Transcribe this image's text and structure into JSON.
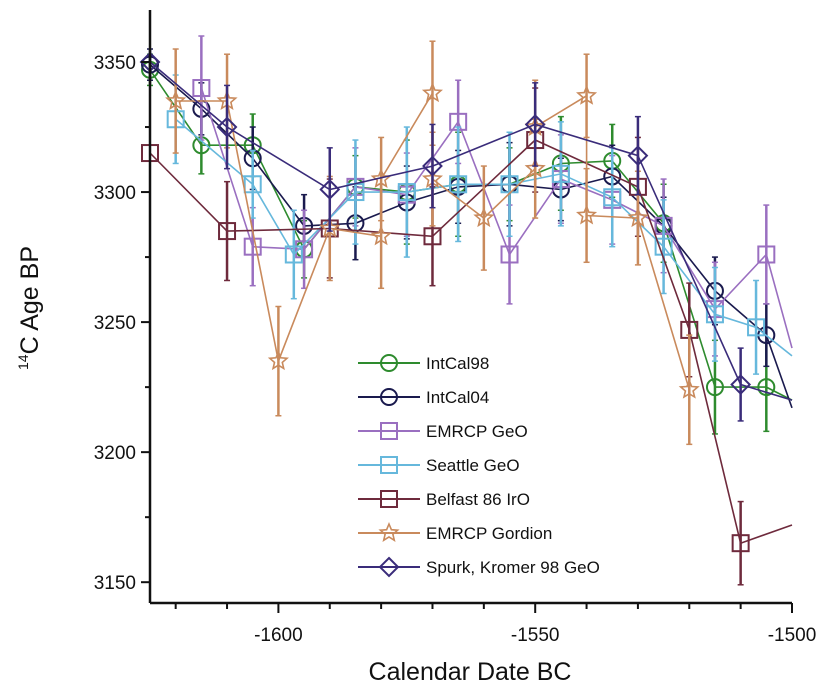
{
  "chart_data": {
    "type": "line",
    "title": "",
    "xlabel": "Calendar Date BC",
    "ylabel_main": "C Age BP",
    "ylabel_superscript": "14",
    "xlim": [
      -1625,
      -1500
    ],
    "ylim": [
      3142,
      3370
    ],
    "x_ticks": [
      -1600,
      -1550,
      -1500
    ],
    "y_ticks": [
      3150,
      3200,
      3250,
      3300,
      3350
    ],
    "grid": false,
    "legend_position": "bottom-center",
    "series": [
      {
        "name": "IntCal98",
        "color": "#2e8b2e",
        "marker": "circle",
        "points": [
          {
            "x": -1625,
            "y": 3347,
            "err": 6
          },
          {
            "x": -1615,
            "y": 3318,
            "err": 11
          },
          {
            "x": -1605,
            "y": 3318,
            "err": 12
          },
          {
            "x": -1595,
            "y": 3278,
            "err": 11
          },
          {
            "x": -1585,
            "y": 3302,
            "err": 12
          },
          {
            "x": -1575,
            "y": 3300,
            "err": 20
          },
          {
            "x": -1565,
            "y": 3303,
            "err": 20
          },
          {
            "x": -1555,
            "y": 3303,
            "err": 14
          },
          {
            "x": -1545,
            "y": 3311,
            "err": 18
          },
          {
            "x": -1535,
            "y": 3312,
            "err": 14
          },
          {
            "x": -1525,
            "y": 3288,
            "err": 15
          },
          {
            "x": -1515,
            "y": 3225,
            "err": 18
          },
          {
            "x": -1505,
            "y": 3225,
            "err": 17
          },
          {
            "x": -1500,
            "y": 3220,
            "err": 0
          }
        ]
      },
      {
        "name": "IntCal04",
        "color": "#1a1a4e",
        "marker": "circle",
        "points": [
          {
            "x": -1625,
            "y": 3349,
            "err": 6
          },
          {
            "x": -1615,
            "y": 3332,
            "err": 10
          },
          {
            "x": -1605,
            "y": 3313,
            "err": 12
          },
          {
            "x": -1595,
            "y": 3287,
            "err": 12
          },
          {
            "x": -1585,
            "y": 3288,
            "err": 14
          },
          {
            "x": -1575,
            "y": 3296,
            "err": 14
          },
          {
            "x": -1565,
            "y": 3302,
            "err": 14
          },
          {
            "x": -1555,
            "y": 3303,
            "err": 16
          },
          {
            "x": -1545,
            "y": 3301,
            "err": 12
          },
          {
            "x": -1535,
            "y": 3306,
            "err": 12
          },
          {
            "x": -1525,
            "y": 3287,
            "err": 11
          },
          {
            "x": -1515,
            "y": 3262,
            "err": 13
          },
          {
            "x": -1505,
            "y": 3245,
            "err": 12
          },
          {
            "x": -1500,
            "y": 3217,
            "err": 0
          }
        ]
      },
      {
        "name": "EMRCP GeO",
        "color": "#9a6fc0",
        "marker": "square",
        "points": [
          {
            "x": -1615,
            "y": 3340,
            "err": 20
          },
          {
            "x": -1605,
            "y": 3279,
            "err": 15
          },
          {
            "x": -1595,
            "y": 3278,
            "err": 15
          },
          {
            "x": -1585,
            "y": 3302,
            "err": 15
          },
          {
            "x": -1575,
            "y": 3299,
            "err": 16
          },
          {
            "x": -1565,
            "y": 3327,
            "err": 16
          },
          {
            "x": -1555,
            "y": 3276,
            "err": 19
          },
          {
            "x": -1545,
            "y": 3305,
            "err": 17
          },
          {
            "x": -1535,
            "y": 3297,
            "err": 17
          },
          {
            "x": -1525,
            "y": 3287,
            "err": 18
          },
          {
            "x": -1515,
            "y": 3255,
            "err": 18
          },
          {
            "x": -1505,
            "y": 3276,
            "err": 19
          },
          {
            "x": -1500,
            "y": 3240,
            "err": 0
          }
        ]
      },
      {
        "name": "Seattle GeO",
        "color": "#66b8dc",
        "marker": "square",
        "points": [
          {
            "x": -1620,
            "y": 3328,
            "err": 17
          },
          {
            "x": -1605,
            "y": 3303,
            "err": 13
          },
          {
            "x": -1597,
            "y": 3276,
            "err": 17
          },
          {
            "x": -1585,
            "y": 3300,
            "err": 20
          },
          {
            "x": -1575,
            "y": 3300,
            "err": 25
          },
          {
            "x": -1565,
            "y": 3303,
            "err": 22
          },
          {
            "x": -1555,
            "y": 3303,
            "err": 20
          },
          {
            "x": -1545,
            "y": 3307,
            "err": 20
          },
          {
            "x": -1535,
            "y": 3298,
            "err": 19
          },
          {
            "x": -1525,
            "y": 3279,
            "err": 18
          },
          {
            "x": -1515,
            "y": 3253,
            "err": 18
          },
          {
            "x": -1507,
            "y": 3248,
            "err": 18
          },
          {
            "x": -1500,
            "y": 3237,
            "err": 0
          }
        ]
      },
      {
        "name": "Belfast 86 IrO",
        "color": "#6e2a3c",
        "marker": "square",
        "points": [
          {
            "x": -1625,
            "y": 3315,
            "err": 0
          },
          {
            "x": -1610,
            "y": 3285,
            "err": 19
          },
          {
            "x": -1590,
            "y": 3286,
            "err": 19
          },
          {
            "x": -1570,
            "y": 3283,
            "err": 19
          },
          {
            "x": -1550,
            "y": 3320,
            "err": 20
          },
          {
            "x": -1530,
            "y": 3302,
            "err": 19
          },
          {
            "x": -1520,
            "y": 3247,
            "err": 18
          },
          {
            "x": -1510,
            "y": 3165,
            "err": 16
          },
          {
            "x": -1500,
            "y": 3172,
            "err": 0
          }
        ]
      },
      {
        "name": "EMRCP Gordion",
        "color": "#c98a5c",
        "marker": "star",
        "points": [
          {
            "x": -1620,
            "y": 3335,
            "err": 20
          },
          {
            "x": -1610,
            "y": 3335,
            "err": 18
          },
          {
            "x": -1600,
            "y": 3235,
            "err": 21
          },
          {
            "x": -1590,
            "y": 3286,
            "err": 20
          },
          {
            "x": -1580,
            "y": 3283,
            "err": 20
          },
          {
            "x": -1580,
            "y": 3305,
            "err": 16
          },
          {
            "x": -1570,
            "y": 3338,
            "err": 20
          },
          {
            "x": -1570,
            "y": 3305,
            "err": 18
          },
          {
            "x": -1560,
            "y": 3290,
            "err": 20
          },
          {
            "x": -1550,
            "y": 3309,
            "err": 19
          },
          {
            "x": -1550,
            "y": 3325,
            "err": 18
          },
          {
            "x": -1540,
            "y": 3337,
            "err": 16
          },
          {
            "x": -1540,
            "y": 3291,
            "err": 18
          },
          {
            "x": -1530,
            "y": 3290,
            "err": 18
          },
          {
            "x": -1520,
            "y": 3224,
            "err": 21
          }
        ]
      },
      {
        "name": "Spurk, Kromer 98 GeO",
        "color": "#3a2c7a",
        "marker": "diamond",
        "points": [
          {
            "x": -1625,
            "y": 3350,
            "err": 0
          },
          {
            "x": -1610,
            "y": 3325,
            "err": 16
          },
          {
            "x": -1590,
            "y": 3301,
            "err": 16
          },
          {
            "x": -1570,
            "y": 3310,
            "err": 16
          },
          {
            "x": -1550,
            "y": 3326,
            "err": 16
          },
          {
            "x": -1530,
            "y": 3314,
            "err": 15
          },
          {
            "x": -1510,
            "y": 3226,
            "err": 14
          },
          {
            "x": -1500,
            "y": 3220,
            "err": 0
          }
        ]
      }
    ]
  }
}
